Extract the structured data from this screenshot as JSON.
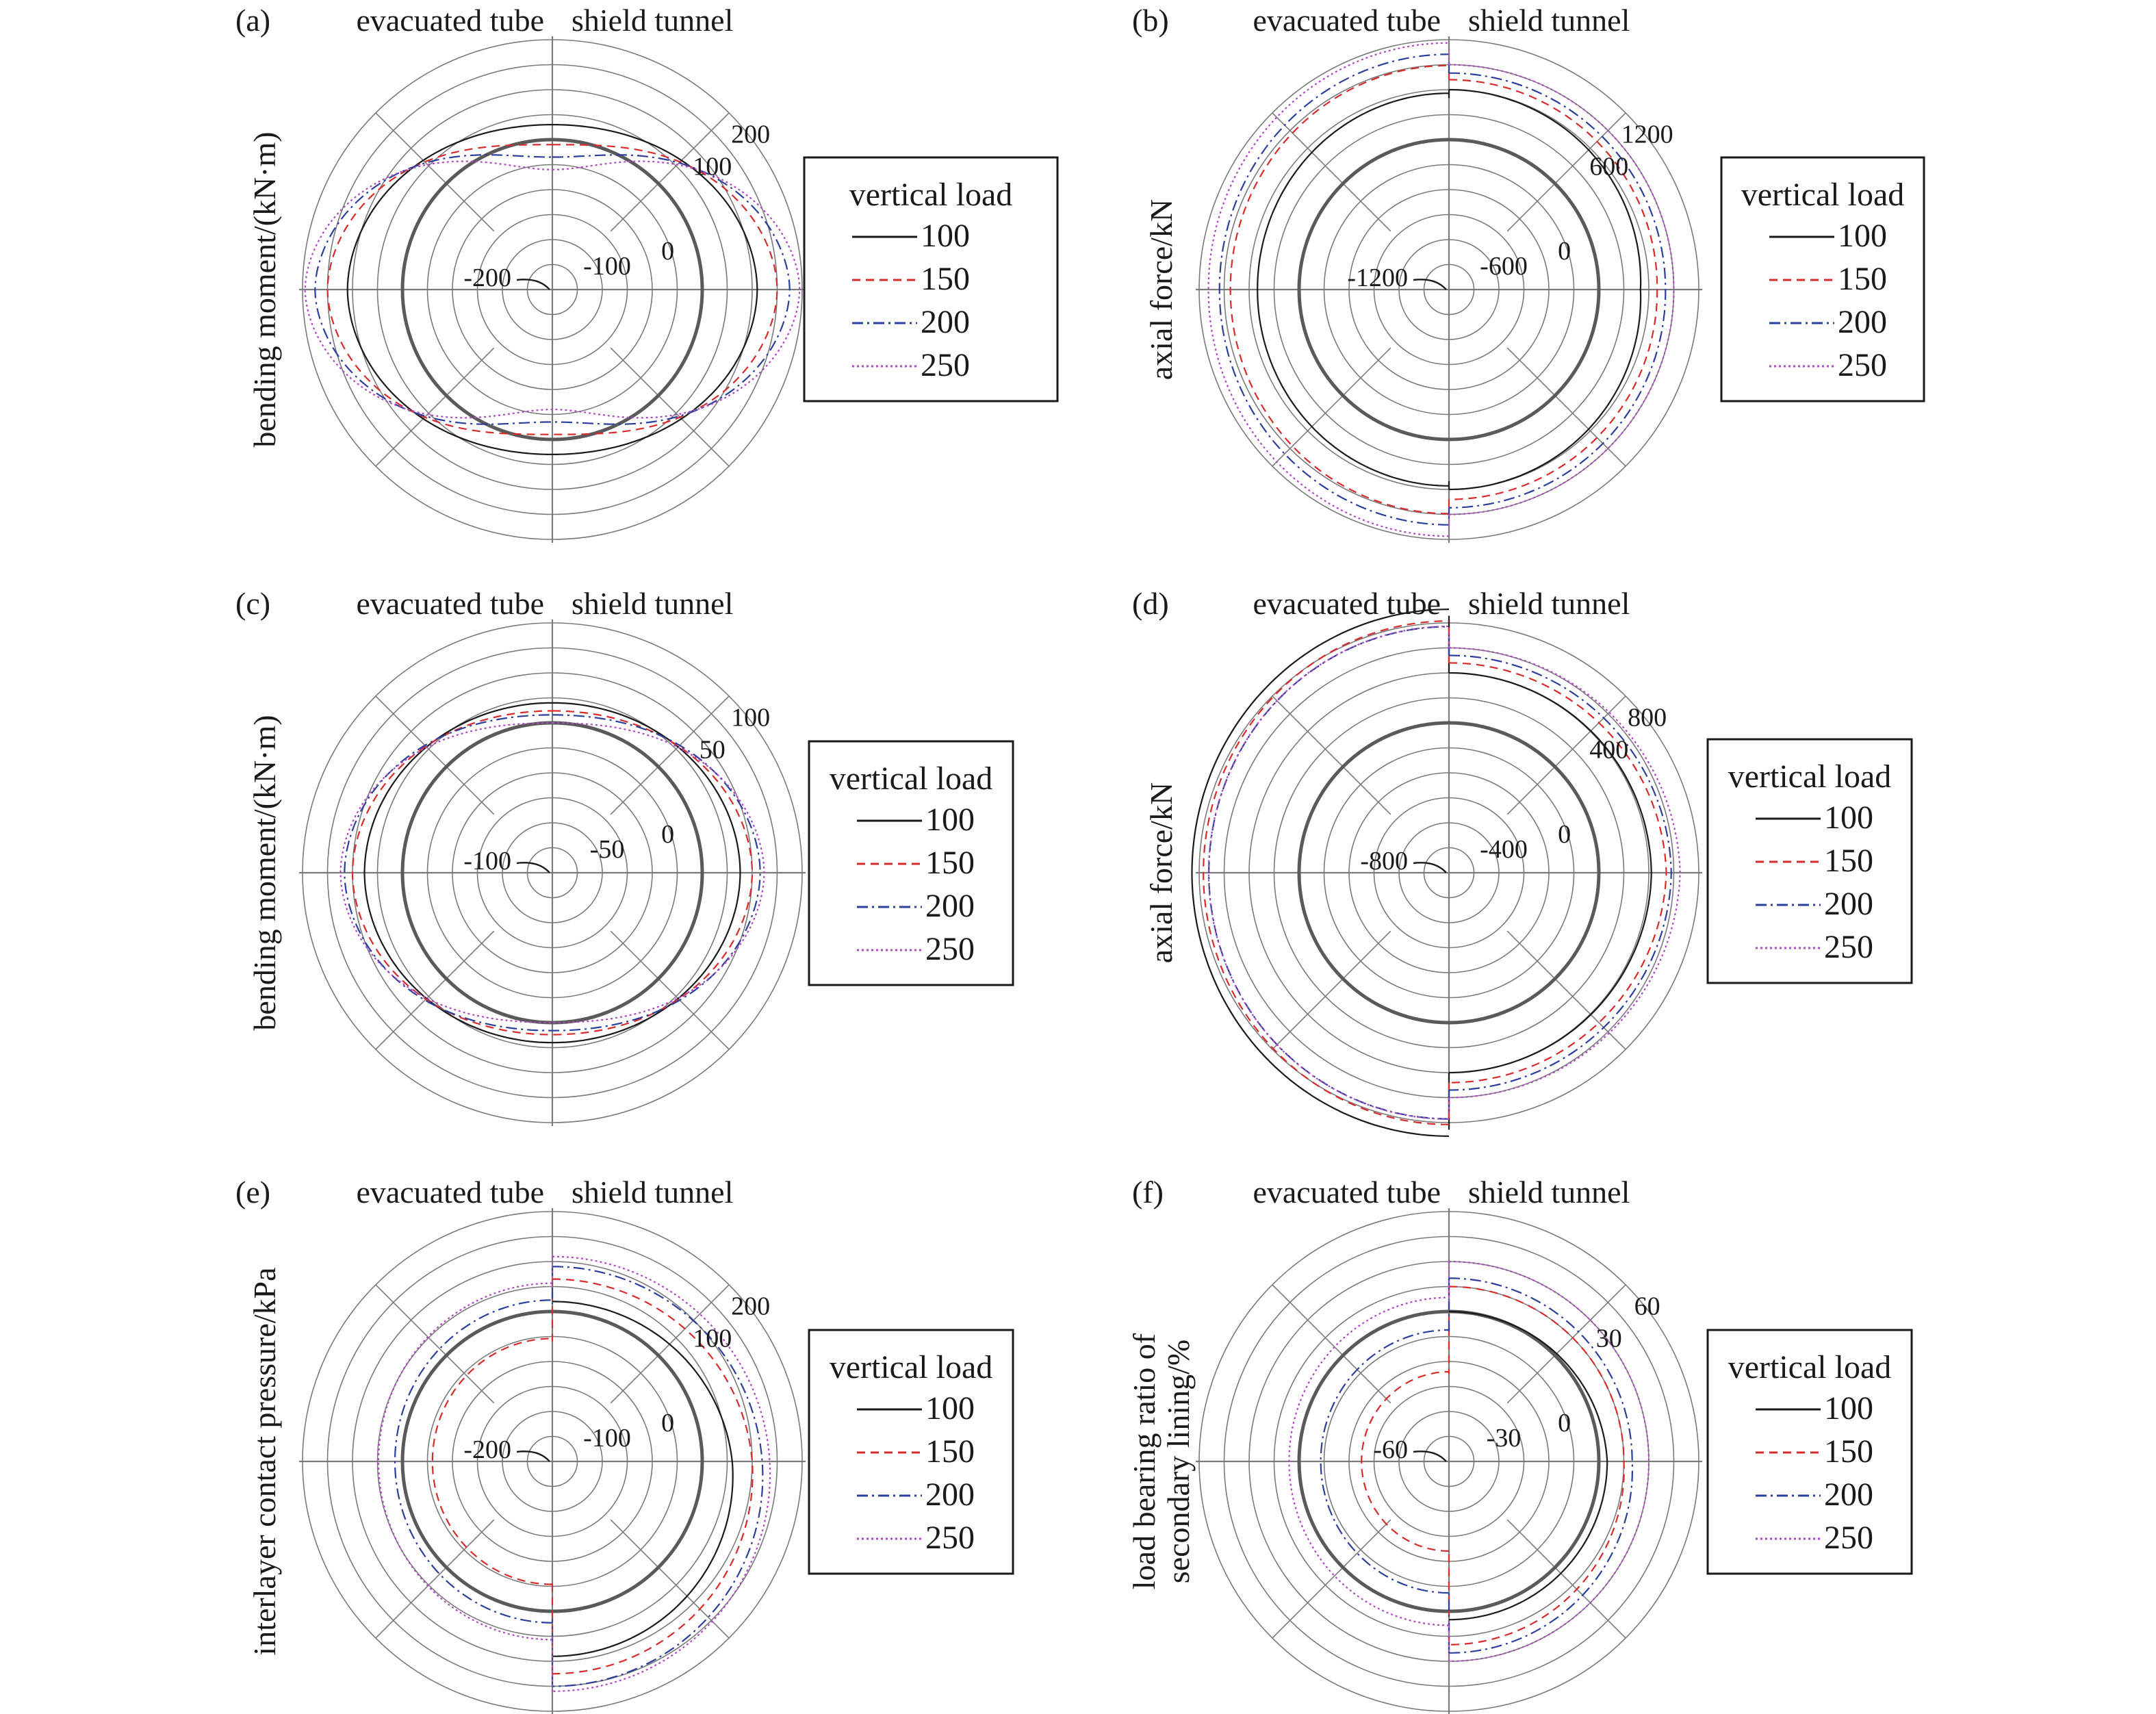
{
  "figure": {
    "series_styles": [
      {
        "name": "100",
        "color": "#1a1a1a",
        "dash": "none",
        "width": 2.2
      },
      {
        "name": "150",
        "color": "#d92b2b",
        "dash": "12 8",
        "width": 2.2
      },
      {
        "name": "200",
        "color": "#2b3f9c",
        "dash": "16 6 3 6",
        "width": 2.2
      },
      {
        "name": "250",
        "color": "#b04ac4",
        "dash": "3 4",
        "width": 2.2
      }
    ],
    "grid_color": "#7a7a7a",
    "zero_ring_color": "#5a5a5a"
  },
  "chart_data": [
    {
      "id": "a",
      "panel_label": "(a)",
      "type": "polar-line",
      "left_title": "evacuated tube",
      "right_title": "shield tunnel",
      "ylabel": "bending moment/(kN·m)",
      "ylabel_lines": [
        "bending moment/(kN·m)"
      ],
      "r_range": [
        -300,
        200
      ],
      "ring_step": 50,
      "r_ticks": [
        {
          "value": -200,
          "label": "-200"
        },
        {
          "value": -100,
          "label": "-100"
        },
        {
          "value": 0,
          "label": "0"
        },
        {
          "value": 100,
          "label": "100"
        },
        {
          "value": 200,
          "label": "200"
        }
      ],
      "legend": {
        "title": "vertical load",
        "entries": [
          "100",
          "150",
          "200",
          "250"
        ]
      },
      "series": [
        {
          "name": "100",
          "shape": "peanut",
          "top": 30,
          "side": 110,
          "bottom": 30,
          "left_scale": 1.0
        },
        {
          "name": "150",
          "shape": "peanut",
          "top": -10,
          "side": 150,
          "bottom": -10,
          "left_scale": 1.0
        },
        {
          "name": "200",
          "shape": "peanut",
          "top": -35,
          "side": 175,
          "bottom": -35,
          "left_scale": 1.0
        },
        {
          "name": "250",
          "shape": "peanut",
          "top": -60,
          "side": 195,
          "bottom": -60,
          "left_scale": 1.0
        }
      ]
    },
    {
      "id": "b",
      "panel_label": "(b)",
      "type": "polar-line",
      "left_title": "evacuated tube",
      "right_title": "shield tunnel",
      "ylabel": "axial force/kN",
      "ylabel_lines": [
        "axial force/kN"
      ],
      "r_range": [
        -1800,
        1200
      ],
      "ring_step": 300,
      "r_ticks": [
        {
          "value": -1200,
          "label": "-1200"
        },
        {
          "value": -600,
          "label": "-600"
        },
        {
          "value": 0,
          "label": "0"
        },
        {
          "value": 600,
          "label": "600"
        },
        {
          "value": 1200,
          "label": "1200"
        }
      ],
      "legend": {
        "title": "vertical load",
        "entries": [
          "100",
          "150",
          "200",
          "250"
        ]
      },
      "series": [
        {
          "name": "100",
          "shape": "split",
          "top": 600,
          "side": 500,
          "bottom": 600,
          "left_scale": 1.0
        },
        {
          "name": "150",
          "shape": "split",
          "top": 720,
          "side": 700,
          "bottom": 720,
          "left_scale": 1.05
        },
        {
          "name": "200",
          "shape": "split",
          "top": 800,
          "side": 800,
          "bottom": 820,
          "left_scale": 1.06
        },
        {
          "name": "250",
          "shape": "split",
          "top": 900,
          "side": 900,
          "bottom": 900,
          "left_scale": 1.07
        }
      ]
    },
    {
      "id": "c",
      "panel_label": "(c)",
      "type": "polar-line",
      "left_title": "evacuated tube",
      "right_title": "shield tunnel",
      "ylabel": "bending moment/(kN·m)",
      "ylabel_lines": [
        "bending moment/(kN·m)"
      ],
      "r_range": [
        -150,
        100
      ],
      "ring_step": 25,
      "r_ticks": [
        {
          "value": -100,
          "label": "-100"
        },
        {
          "value": -50,
          "label": "-50"
        },
        {
          "value": 0,
          "label": "0"
        },
        {
          "value": 50,
          "label": "50"
        },
        {
          "value": 100,
          "label": "100"
        }
      ],
      "legend": {
        "title": "vertical load",
        "entries": [
          "100",
          "150",
          "200",
          "250"
        ]
      },
      "series": [
        {
          "name": "100",
          "shape": "peanut",
          "top": 20,
          "side": 38,
          "bottom": 20,
          "left_scale": 1.0
        },
        {
          "name": "150",
          "shape": "peanut",
          "top": 12,
          "side": 50,
          "bottom": 12,
          "left_scale": 1.0
        },
        {
          "name": "200",
          "shape": "peanut",
          "top": 8,
          "side": 58,
          "bottom": 8,
          "left_scale": 1.0
        },
        {
          "name": "250",
          "shape": "peanut",
          "top": 0,
          "side": 62,
          "bottom": 0,
          "left_scale": 1.0
        }
      ]
    },
    {
      "id": "d",
      "panel_label": "(d)",
      "type": "polar-line",
      "left_title": "evacuated tube",
      "right_title": "shield tunnel",
      "ylabel": "axial force/kN",
      "ylabel_lines": [
        "axial force/kN"
      ],
      "r_range": [
        -1200,
        800
      ],
      "ring_step": 200,
      "r_ticks": [
        {
          "value": -800,
          "label": "-800"
        },
        {
          "value": -400,
          "label": "-400"
        },
        {
          "value": 0,
          "label": "0"
        },
        {
          "value": 400,
          "label": "400"
        },
        {
          "value": 800,
          "label": "800"
        }
      ],
      "legend": {
        "title": "vertical load",
        "entries": [
          "100",
          "150",
          "200",
          "250"
        ]
      },
      "series": [
        {
          "name": "100",
          "shape": "split",
          "top": 400,
          "side": 420,
          "bottom": 400,
          "left_scale": 1.27
        },
        {
          "name": "150",
          "shape": "split",
          "top": 480,
          "side": 540,
          "bottom": 480,
          "left_scale": 1.13
        },
        {
          "name": "200",
          "shape": "split",
          "top": 540,
          "side": 580,
          "bottom": 540,
          "left_scale": 1.08
        },
        {
          "name": "250",
          "shape": "split",
          "top": 600,
          "side": 650,
          "bottom": 600,
          "left_scale": 1.04
        }
      ]
    },
    {
      "id": "e",
      "panel_label": "(e)",
      "type": "polar-line",
      "left_title": "evacuated tube",
      "right_title": "shield tunnel",
      "ylabel": "interlayer contact pressure/kPa",
      "ylabel_lines": [
        "interlayer contact pressure/kPa"
      ],
      "r_range": [
        -300,
        200
      ],
      "ring_step": 50,
      "r_ticks": [
        {
          "value": -200,
          "label": "-200"
        },
        {
          "value": -100,
          "label": "-100"
        },
        {
          "value": 0,
          "label": "0"
        },
        {
          "value": 100,
          "label": "100"
        },
        {
          "value": 200,
          "label": "200"
        }
      ],
      "legend": {
        "title": "vertical load",
        "entries": [
          "100",
          "150",
          "200",
          "250"
        ]
      },
      "series": [
        {
          "name": "100",
          "shape": "split",
          "top": 20,
          "side": 60,
          "bottom": 90,
          "left_scale": 0.0
        },
        {
          "name": "150",
          "shape": "split",
          "top": 65,
          "side": 100,
          "bottom": 125,
          "left_scale": 0.6
        },
        {
          "name": "200",
          "shape": "split",
          "top": 90,
          "side": 120,
          "bottom": 150,
          "left_scale": 0.75
        },
        {
          "name": "250",
          "shape": "split",
          "top": 110,
          "side": 135,
          "bottom": 160,
          "left_scale": 0.8
        }
      ]
    },
    {
      "id": "f",
      "panel_label": "(f)",
      "type": "polar-line",
      "left_title": "evacuated tube",
      "right_title": "shield tunnel",
      "ylabel": "load bearing ratio of secondary lining/%",
      "ylabel_lines": [
        "load bearing ratio of",
        "secondary lining/%"
      ],
      "r_range": [
        -90,
        60
      ],
      "ring_step": 15,
      "r_ticks": [
        {
          "value": -60,
          "label": "-60"
        },
        {
          "value": -30,
          "label": "-30"
        },
        {
          "value": 0,
          "label": "0"
        },
        {
          "value": 30,
          "label": "30"
        },
        {
          "value": 60,
          "label": "60"
        }
      ],
      "legend": {
        "title": "vertical load",
        "entries": [
          "100",
          "150",
          "200",
          "250"
        ]
      },
      "series": [
        {
          "name": "100",
          "shape": "split",
          "top": 0,
          "side": 5,
          "bottom": 5,
          "left_scale": 0.0
        },
        {
          "name": "150",
          "shape": "split",
          "top": 15,
          "side": 15,
          "bottom": 20,
          "left_scale": 0.5
        },
        {
          "name": "200",
          "shape": "split",
          "top": 20,
          "side": 20,
          "bottom": 25,
          "left_scale": 0.7
        },
        {
          "name": "250",
          "shape": "split",
          "top": 30,
          "side": 30,
          "bottom": 30,
          "left_scale": 0.8
        }
      ]
    }
  ]
}
